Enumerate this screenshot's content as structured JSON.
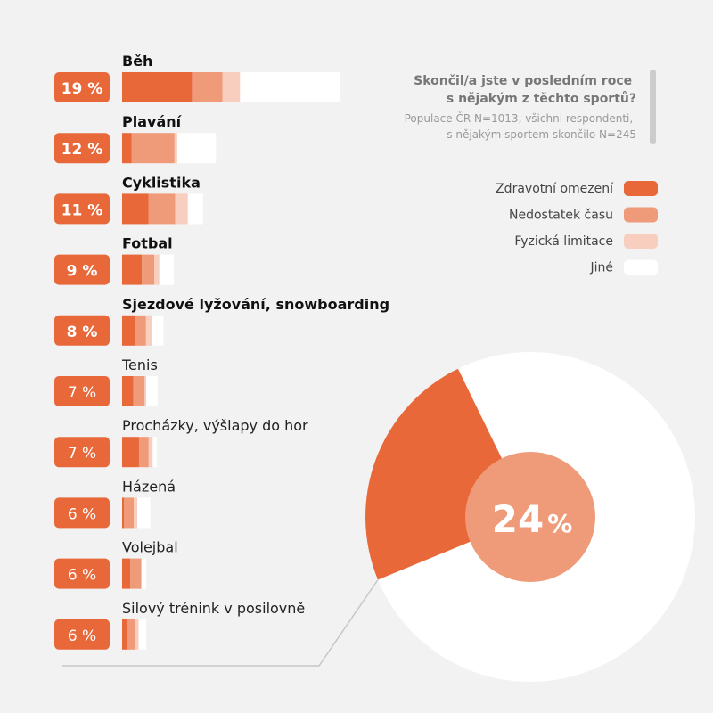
{
  "chart_data": {
    "type": "bar",
    "title": "Skončil/a jste v posledním roce s nějakým z těchto sportů?",
    "subtitle": "Populace ČR N=1013, všichni respondenti, s nějakým sportem skončilo N=245",
    "categories": [
      "Běh",
      "Plavání",
      "Cyklistika",
      "Fotbal",
      "Sjezdové lyžování, snowboarding",
      "Tenis",
      "Procházky, výšlapy do hor",
      "Házená",
      "Volejbal",
      "Silový trénink v posilovně"
    ],
    "bold_categories": [
      true,
      true,
      true,
      true,
      true,
      false,
      false,
      false,
      false,
      false
    ],
    "percentages": [
      19,
      12,
      11,
      9,
      8,
      7,
      7,
      6,
      6,
      6
    ],
    "percent_labels": [
      "19 %",
      "12 %",
      "11 %",
      "9 %",
      "8 %",
      "7 %",
      "7 %",
      "6 %",
      "6 %",
      "6 %"
    ],
    "series": [
      {
        "name": "Zdravotní omezení",
        "color": "#e8683a",
        "values": [
          32,
          7,
          21,
          19,
          14,
          14,
          21,
          3,
          12,
          7
        ]
      },
      {
        "name": "Nedostatek času",
        "color": "#ef9a78",
        "values": [
          14,
          31,
          21,
          12,
          12,
          14,
          12,
          14,
          16,
          12
        ]
      },
      {
        "name": "Fyzická limitace",
        "color": "#f8cebf",
        "values": [
          8,
          2,
          10,
          5,
          7,
          2,
          5,
          5,
          0,
          5
        ]
      },
      {
        "name": "Jiné",
        "color": "#ffffff",
        "values": [
          46,
          28,
          12,
          14,
          12,
          14,
          5,
          19,
          7,
          11
        ]
      }
    ],
    "legend_position": "right",
    "highlight": {
      "value_label": "24 %",
      "value": 24
    }
  },
  "colors": {
    "background": "#f2f2f2",
    "accent": "#e8683a",
    "pct_box": "#e8683a",
    "inner_circle": "#ef9a78",
    "outer_circle": "#ffffff",
    "divider": "#cccccc",
    "leader_line": "#c7c7c7"
  }
}
